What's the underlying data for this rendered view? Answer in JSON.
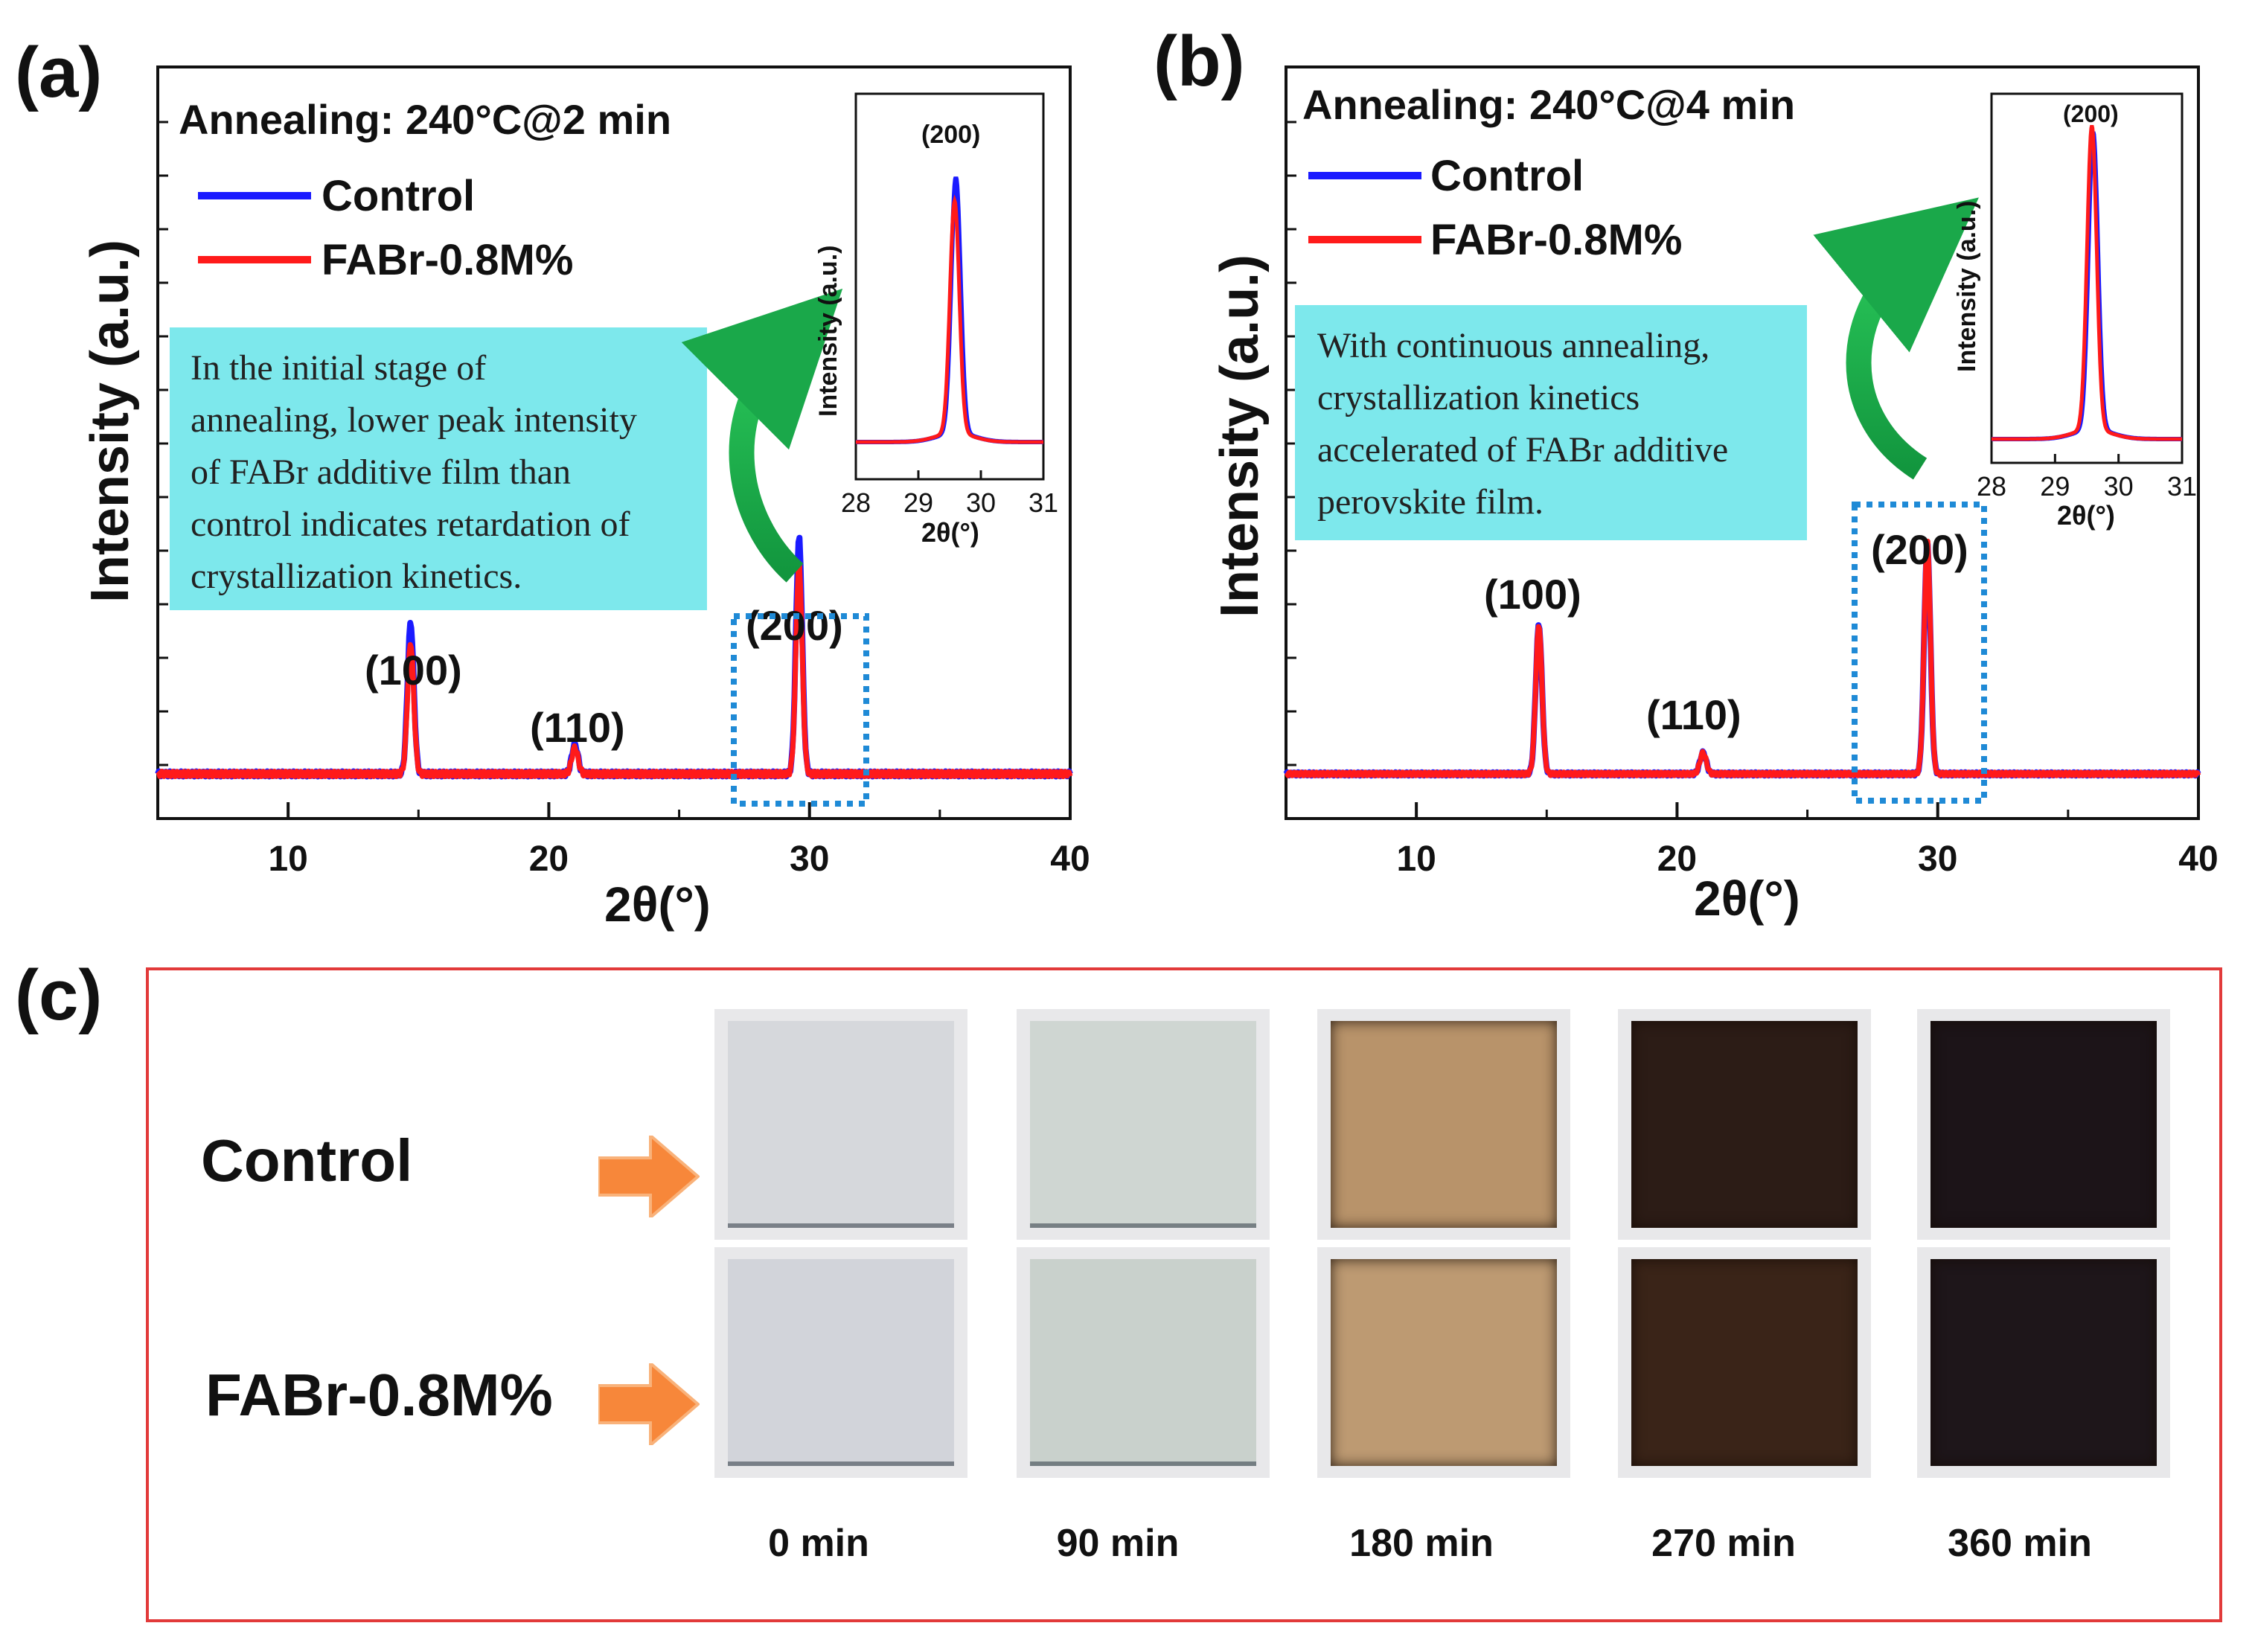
{
  "figure": {
    "panel_labels": {
      "a": "(a)",
      "b": "(b)",
      "c": "(c)"
    }
  },
  "chart_data": [
    {
      "id": "a",
      "type": "line",
      "title": "Annealing: 240°C@2 min",
      "xlabel": "2θ(°)",
      "ylabel": "Intensity (a.u.)",
      "xlim": [
        5,
        40
      ],
      "xticks": [
        "10",
        "20",
        "30",
        "40"
      ],
      "legend": [
        {
          "name": "Control",
          "color": "#1a1aff"
        },
        {
          "name": "FABr-0.8M%",
          "color": "#ff1a1a"
        }
      ],
      "series": [
        {
          "name": "Control",
          "color": "#1a1aff",
          "peaks": [
            {
              "x": 14.7,
              "h": 0.23
            },
            {
              "x": 21.0,
              "h": 0.045
            },
            {
              "x": 29.6,
              "h": 0.36
            }
          ]
        },
        {
          "name": "FABr-0.8M%",
          "color": "#ff1a1a",
          "peaks": [
            {
              "x": 14.7,
              "h": 0.2
            },
            {
              "x": 21.0,
              "h": 0.04
            },
            {
              "x": 29.6,
              "h": 0.32
            }
          ]
        }
      ],
      "peak_labels": [
        "(100)",
        "(110)",
        "(200)"
      ],
      "annotation": "In the initial stage of annealing, lower peak intensity of FABr additive film than control indicates retardation of crystallization kinetics.",
      "inset": {
        "label": "(200)",
        "xlabel": "2θ(°)",
        "ylabel": "Intensity (a.u.)",
        "xlim": [
          28,
          31
        ],
        "xticks": [
          "28",
          "29",
          "30",
          "31"
        ],
        "series": [
          {
            "name": "Control",
            "color": "#1a1aff",
            "peak": {
              "x": 29.6,
              "h": 0.86
            }
          },
          {
            "name": "FABr-0.8M%",
            "color": "#ff1a1a",
            "peak": {
              "x": 29.58,
              "h": 0.78
            }
          }
        ]
      }
    },
    {
      "id": "b",
      "type": "line",
      "title": "Annealing: 240°C@4 min",
      "xlabel": "2θ(°)",
      "ylabel": "Intensity (a.u.)",
      "xlim": [
        5,
        40
      ],
      "xticks": [
        "10",
        "20",
        "30",
        "40"
      ],
      "legend": [
        {
          "name": "Control",
          "color": "#1a1aff"
        },
        {
          "name": "FABr-0.8M%",
          "color": "#ff1a1a"
        }
      ],
      "series": [
        {
          "name": "Control",
          "color": "#1a1aff",
          "peaks": [
            {
              "x": 14.7,
              "h": 0.35
            },
            {
              "x": 21.0,
              "h": 0.05
            },
            {
              "x": 29.6,
              "h": 0.54
            }
          ]
        },
        {
          "name": "FABr-0.8M%",
          "color": "#ff1a1a",
          "peaks": [
            {
              "x": 14.7,
              "h": 0.35
            },
            {
              "x": 21.0,
              "h": 0.05
            },
            {
              "x": 29.6,
              "h": 0.55
            }
          ]
        }
      ],
      "peak_labels": [
        "(100)",
        "(110)",
        "(200)"
      ],
      "annotation": "With continuous annealing, crystallization kinetics accelerated of FABr additive perovskite film.",
      "inset": {
        "label": "(200)",
        "xlabel": "2θ(°)",
        "ylabel": "Intensity (a.u.)",
        "xlim": [
          28,
          31
        ],
        "xticks": [
          "28",
          "29",
          "30",
          "31"
        ],
        "series": [
          {
            "name": "Control",
            "color": "#1a1aff",
            "peak": {
              "x": 29.6,
              "h": 0.93
            }
          },
          {
            "name": "FABr-0.8M%",
            "color": "#ff1a1a",
            "peak": {
              "x": 29.58,
              "h": 0.95
            }
          }
        ]
      }
    }
  ],
  "panel_c": {
    "rows": [
      {
        "label": "Control",
        "samples": [
          "#d6d8dc",
          "#cfd6d2",
          "#b8936a",
          "#2c1c16",
          "#1c1418"
        ]
      },
      {
        "label": "FABr-0.8M%",
        "samples": [
          "#d2d4da",
          "#c9d1cc",
          "#bd9a72",
          "#3a2418",
          "#1e161a"
        ]
      }
    ],
    "times": [
      "0 min",
      "90 min",
      "180 min",
      "270 min",
      "360 min"
    ],
    "arrow_color": "#f7873a"
  }
}
